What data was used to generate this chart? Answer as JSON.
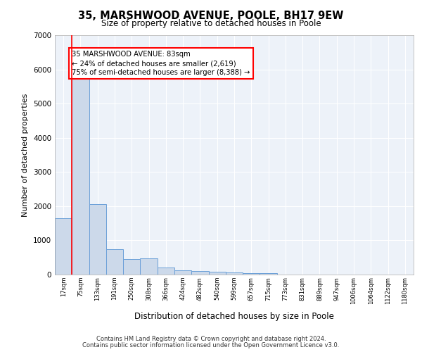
{
  "title1": "35, MARSHWOOD AVENUE, POOLE, BH17 9EW",
  "title2": "Size of property relative to detached houses in Poole",
  "xlabel": "Distribution of detached houses by size in Poole",
  "ylabel": "Number of detached properties",
  "categories": [
    "17sqm",
    "75sqm",
    "133sqm",
    "191sqm",
    "250sqm",
    "308sqm",
    "366sqm",
    "424sqm",
    "482sqm",
    "540sqm",
    "599sqm",
    "657sqm",
    "715sqm",
    "773sqm",
    "831sqm",
    "889sqm",
    "947sqm",
    "1006sqm",
    "1064sqm",
    "1122sqm",
    "1180sqm"
  ],
  "values": [
    1650,
    6100,
    2050,
    750,
    450,
    480,
    200,
    130,
    110,
    80,
    60,
    50,
    50,
    0,
    0,
    0,
    0,
    0,
    0,
    0,
    0
  ],
  "bar_color": "#ccd9ea",
  "bar_edge_color": "#6a9fd8",
  "red_line_x": 1,
  "annotation_text": "35 MARSHWOOD AVENUE: 83sqm\n← 24% of detached houses are smaller (2,619)\n75% of semi-detached houses are larger (8,388) →",
  "annotation_box_color": "white",
  "annotation_border_color": "red",
  "ylim": [
    0,
    7000
  ],
  "yticks": [
    0,
    1000,
    2000,
    3000,
    4000,
    5000,
    6000,
    7000
  ],
  "footer1": "Contains HM Land Registry data © Crown copyright and database right 2024.",
  "footer2": "Contains public sector information licensed under the Open Government Licence v3.0.",
  "bg_color": "#edf2f9",
  "grid_color": "white"
}
